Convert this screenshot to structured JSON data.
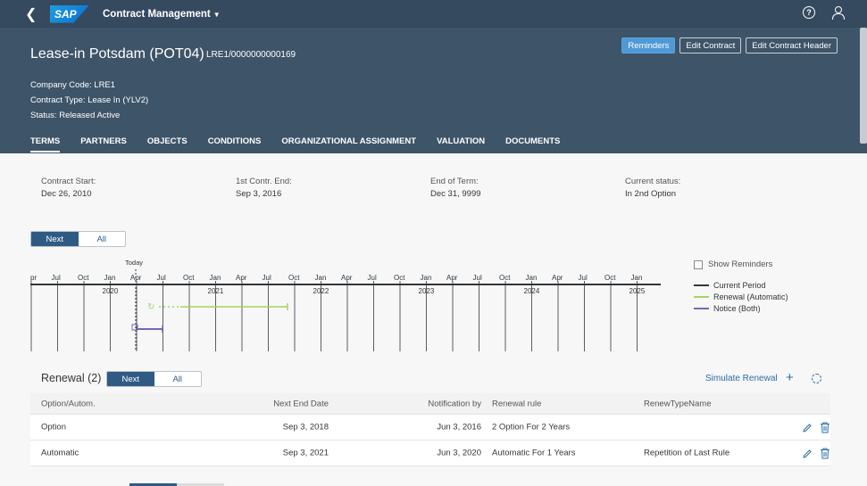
{
  "shell": {
    "app_title": "Contract Management",
    "logo": "SAP",
    "icons": [
      "back-icon",
      "help-icon",
      "user-icon"
    ]
  },
  "header": {
    "title": "Lease-in Potsdam (POT04)",
    "subtitle": "LRE1/0000000000169",
    "company_code": "Company Code: LRE1",
    "contract_type": "Contract Type: Lease In (YLV2)",
    "status": "Status: Released Active",
    "buttons": {
      "reminders": "Reminders",
      "edit_contract": "Edit Contract",
      "edit_header": "Edit Contract Header"
    }
  },
  "tabs": [
    "TERMS",
    "PARTNERS",
    "OBJECTS",
    "CONDITIONS",
    "ORGANIZATIONAL ASSIGNMENT",
    "VALUATION",
    "DOCUMENTS"
  ],
  "facts": [
    {
      "label": "Contract Start:",
      "value": "Dec 26, 2010"
    },
    {
      "label": "1st Contr. End:",
      "value": "Sep 3, 2016"
    },
    {
      "label": "End of Term:",
      "value": "Dec 31, 9999"
    },
    {
      "label": "Current status:",
      "value": "In 2nd Option"
    }
  ],
  "timeline_toggle": {
    "next": "Next",
    "all": "All"
  },
  "timeline": {
    "today_label": "Today",
    "months": [
      "pr",
      "Jul",
      "Oct",
      "Jan",
      "Apr",
      "Jul",
      "Oct",
      "Jan",
      "Apr",
      "Jul",
      "Oct",
      "Jan",
      "Apr",
      "Jul",
      "Oct",
      "Jan",
      "Apr",
      "Jul",
      "Oct",
      "Jan",
      "Apr",
      "Jul",
      "Oct",
      "Jan"
    ],
    "years": [
      "2020",
      "2021",
      "2022",
      "2023",
      "2024",
      "2025"
    ]
  },
  "legend": {
    "show_reminders": "Show Reminders",
    "items": [
      {
        "label": "Current Period",
        "color": "#32363a"
      },
      {
        "label": "Renewal (Automatic)",
        "color": "#a4d65e"
      },
      {
        "label": "Notice (Both)",
        "color": "#7a64b6"
      }
    ]
  },
  "renewal": {
    "title": "Renewal (2)",
    "toggle": {
      "next": "Next",
      "all": "All"
    },
    "simulate": "Simulate Renewal",
    "columns": [
      "Option/Autom.",
      "Next End Date",
      "Notification by",
      "Renewal rule",
      "RenewTypeName"
    ],
    "rows": [
      {
        "type": "Option",
        "next_end": "Sep 3, 2018",
        "notify": "Jun 3, 2016",
        "rule": "2 Option For 2 Years",
        "rename": ""
      },
      {
        "type": "Automatic",
        "next_end": "Sep 3, 2021",
        "notify": "Jun 3, 2020",
        "rule": "Automatic For 1 Years",
        "rename": "Repetition of Last Rule"
      }
    ]
  }
}
